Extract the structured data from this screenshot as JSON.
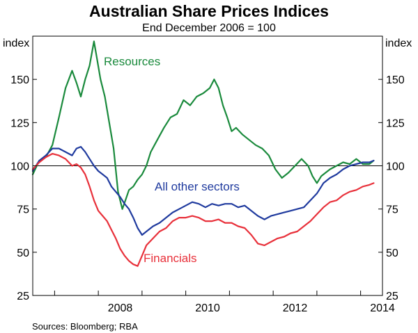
{
  "chart_data": {
    "type": "line",
    "title": "Australian Share Prices Indices",
    "subtitle": "End December 2006 = 100",
    "ylabel_left": "index",
    "ylabel_right": "index",
    "ylim": [
      25,
      175
    ],
    "yticks": [
      25,
      50,
      75,
      100,
      125,
      150
    ],
    "xlim": [
      2006.5,
      2014.5
    ],
    "xticks": [
      2008,
      2010,
      2012,
      2014
    ],
    "xtick_labels": [
      "2008",
      "2010",
      "2012",
      "2014"
    ],
    "reference_line": 100,
    "series": [
      {
        "name": "Resources",
        "color": "#1a8a3c",
        "x": [
          2006.5,
          2006.65,
          2006.8,
          2006.95,
          2007.1,
          2007.25,
          2007.4,
          2007.5,
          2007.6,
          2007.7,
          2007.8,
          2007.9,
          2007.97,
          2008.05,
          2008.15,
          2008.25,
          2008.35,
          2008.45,
          2008.55,
          2008.62,
          2008.7,
          2008.8,
          2008.9,
          2009.0,
          2009.1,
          2009.2,
          2009.35,
          2009.5,
          2009.65,
          2009.8,
          2009.95,
          2010.1,
          2010.25,
          2010.4,
          2010.55,
          2010.65,
          2010.75,
          2010.85,
          2010.95,
          2011.05,
          2011.15,
          2011.3,
          2011.45,
          2011.6,
          2011.75,
          2011.9,
          2012.05,
          2012.2,
          2012.35,
          2012.5,
          2012.65,
          2012.8,
          2012.9,
          2013.0,
          2013.1,
          2013.2,
          2013.3,
          2013.45,
          2013.6,
          2013.75,
          2013.9,
          2014.05,
          2014.2,
          2014.3
        ],
        "values": [
          95,
          103,
          105,
          112,
          128,
          145,
          155,
          148,
          140,
          150,
          158,
          172,
          162,
          150,
          140,
          125,
          110,
          85,
          75,
          80,
          86,
          88,
          92,
          95,
          100,
          108,
          115,
          122,
          128,
          130,
          138,
          135,
          140,
          142,
          145,
          150,
          145,
          135,
          128,
          120,
          122,
          118,
          115,
          112,
          110,
          106,
          98,
          93,
          96,
          100,
          104,
          100,
          94,
          90,
          94,
          96,
          98,
          100,
          102,
          101,
          104,
          101,
          101,
          103
        ]
      },
      {
        "name": "All other sectors",
        "color": "#1f3a9e",
        "x": [
          2006.5,
          2006.65,
          2006.8,
          2006.95,
          2007.1,
          2007.25,
          2007.4,
          2007.5,
          2007.6,
          2007.7,
          2007.8,
          2007.9,
          2008.0,
          2008.1,
          2008.2,
          2008.3,
          2008.4,
          2008.5,
          2008.6,
          2008.7,
          2008.8,
          2008.9,
          2009.0,
          2009.1,
          2009.25,
          2009.4,
          2009.55,
          2009.7,
          2009.85,
          2010.0,
          2010.15,
          2010.3,
          2010.45,
          2010.6,
          2010.75,
          2010.9,
          2011.05,
          2011.2,
          2011.35,
          2011.5,
          2011.65,
          2011.8,
          2011.95,
          2012.1,
          2012.25,
          2012.4,
          2012.55,
          2012.7,
          2012.85,
          2013.0,
          2013.15,
          2013.3,
          2013.45,
          2013.6,
          2013.75,
          2013.9,
          2014.05,
          2014.2,
          2014.3
        ],
        "values": [
          97,
          103,
          106,
          110,
          110,
          108,
          106,
          110,
          111,
          108,
          104,
          100,
          97,
          95,
          93,
          88,
          85,
          82,
          78,
          75,
          70,
          64,
          60,
          62,
          65,
          67,
          70,
          73,
          75,
          77,
          79,
          78,
          76,
          78,
          77,
          78,
          78,
          76,
          77,
          74,
          71,
          69,
          71,
          72,
          73,
          74,
          75,
          76,
          80,
          84,
          90,
          93,
          95,
          98,
          100,
          101,
          102,
          102,
          103
        ]
      },
      {
        "name": "Financials",
        "color": "#e8303a",
        "x": [
          2006.5,
          2006.65,
          2006.8,
          2006.95,
          2007.1,
          2007.25,
          2007.4,
          2007.5,
          2007.6,
          2007.7,
          2007.8,
          2007.9,
          2008.0,
          2008.1,
          2008.2,
          2008.3,
          2008.4,
          2008.5,
          2008.6,
          2008.7,
          2008.8,
          2008.9,
          2009.0,
          2009.1,
          2009.25,
          2009.4,
          2009.55,
          2009.7,
          2009.85,
          2010.0,
          2010.15,
          2010.3,
          2010.45,
          2010.6,
          2010.75,
          2010.9,
          2011.05,
          2011.2,
          2011.35,
          2011.5,
          2011.65,
          2011.8,
          2011.95,
          2012.1,
          2012.25,
          2012.4,
          2012.55,
          2012.7,
          2012.85,
          2013.0,
          2013.15,
          2013.3,
          2013.45,
          2013.6,
          2013.75,
          2013.9,
          2014.05,
          2014.2,
          2014.3
        ],
        "values": [
          98,
          102,
          105,
          107,
          106,
          104,
          100,
          101,
          99,
          95,
          88,
          80,
          74,
          71,
          68,
          63,
          58,
          52,
          48,
          45,
          43,
          42,
          48,
          54,
          58,
          62,
          64,
          68,
          70,
          70,
          71,
          70,
          68,
          68,
          69,
          67,
          67,
          65,
          64,
          60,
          55,
          54,
          56,
          58,
          59,
          61,
          62,
          65,
          68,
          72,
          76,
          79,
          80,
          83,
          85,
          86,
          88,
          89,
          90
        ]
      }
    ],
    "source": "Sources:  Bloomberg; RBA"
  }
}
